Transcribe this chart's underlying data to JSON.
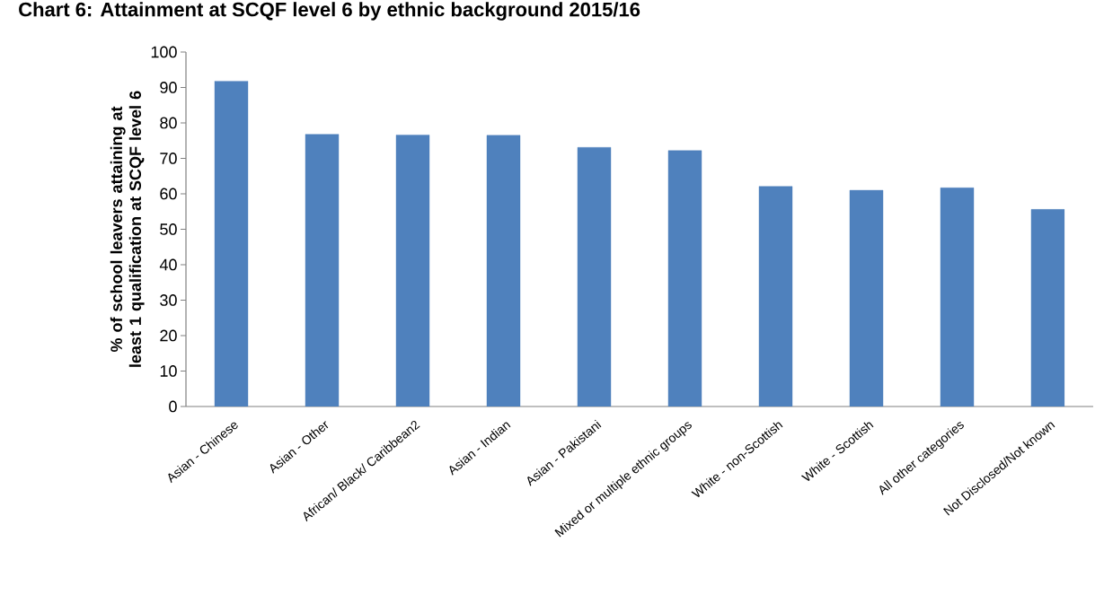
{
  "chart_data": {
    "type": "bar",
    "title": "Chart 6: Attainment at SCQF level 6 by ethnic background 2015/16",
    "ylabel": "% of school leavers attaining at least 1 qualification at SCQF level 6",
    "categories": [
      "Asian - Chinese",
      "Asian - Other",
      "African/ Black/ Caribbean2",
      "Asian - Indian",
      "Asian - Pakistani",
      "Mixed or multiple ethnic groups",
      "White - non-Scottish",
      "White - Scottish",
      "All other categories",
      "Not Disclosed/Not known"
    ],
    "values": [
      91.8,
      76.8,
      76.6,
      76.5,
      73.1,
      72.2,
      62.1,
      61.0,
      61.7,
      55.6
    ],
    "color": "#4f81bd",
    "ylim": [
      0,
      100
    ],
    "yticks": [
      0,
      10,
      20,
      30,
      40,
      50,
      60,
      70,
      80,
      90,
      100
    ],
    "grid": false
  }
}
